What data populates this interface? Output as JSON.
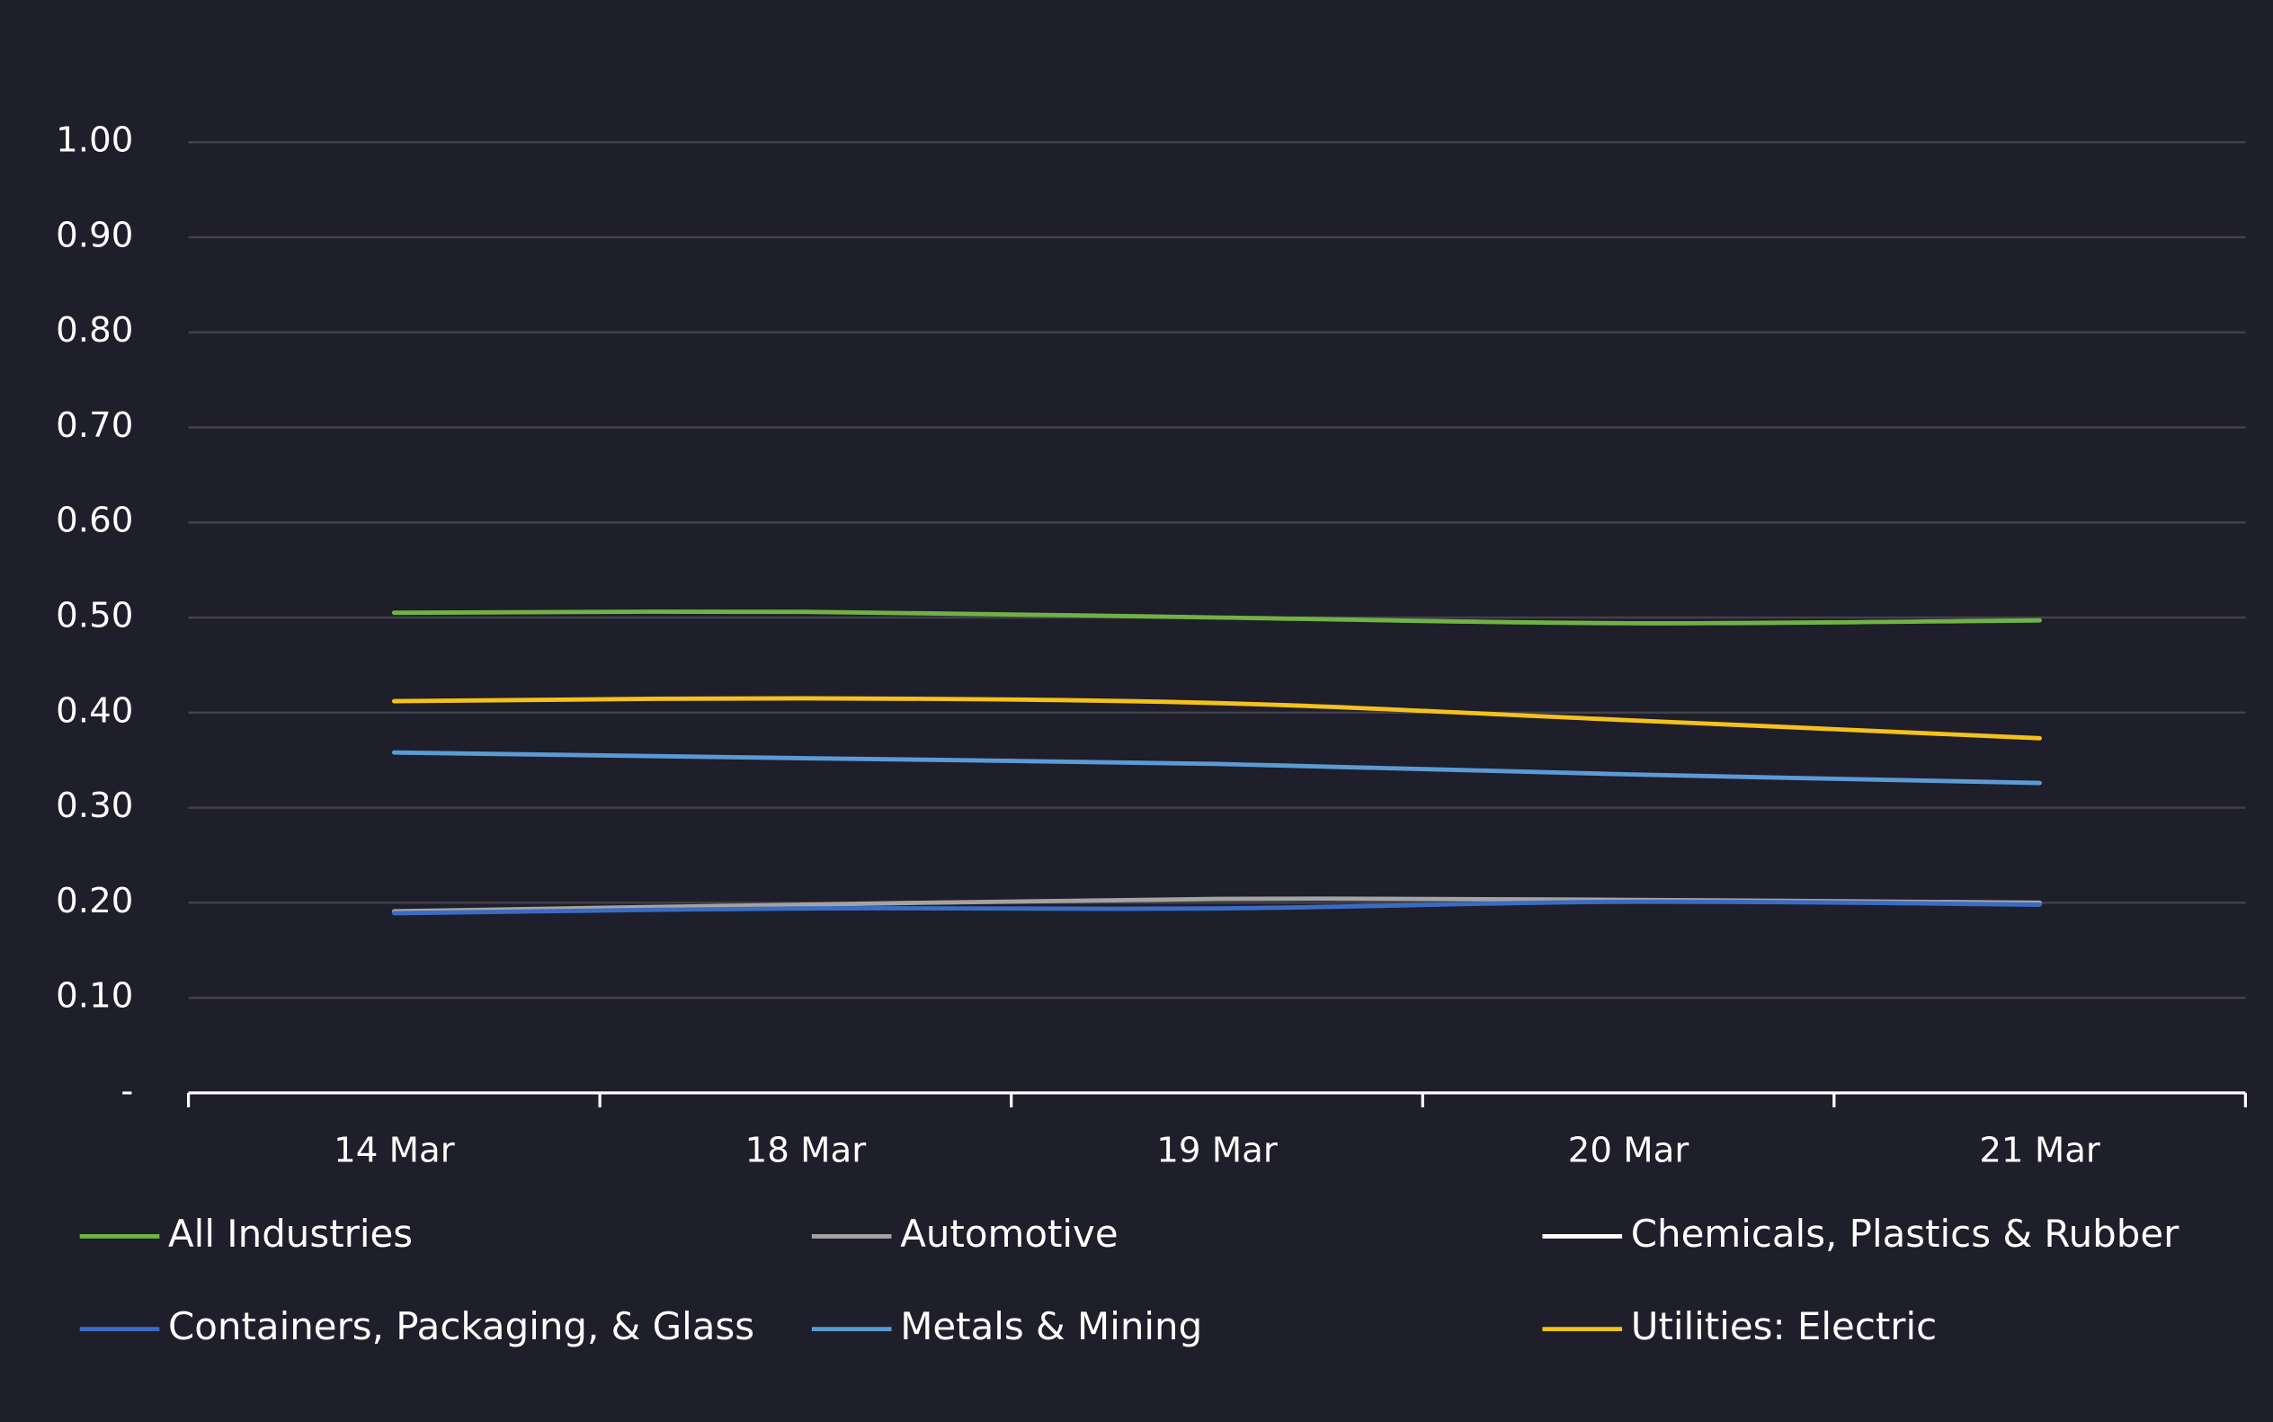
{
  "chart_data": {
    "type": "line",
    "categories": [
      "14 Mar",
      "18 Mar",
      "19 Mar",
      "20 Mar",
      "21 Mar"
    ],
    "series": [
      {
        "name": "All Industries",
        "color": "#6fb344",
        "values": [
          0.505,
          0.506,
          0.5,
          0.494,
          0.497
        ]
      },
      {
        "name": "Automotive",
        "color": "#a3a3a3",
        "values": [
          0.191,
          0.198,
          0.204,
          0.203,
          0.2
        ]
      },
      {
        "name": "Chemicals, Plastics & Rubber",
        "color": "#ffffff",
        "values": [
          null,
          null,
          null,
          null,
          null
        ]
      },
      {
        "name": "Containers, Packaging, & Glass",
        "color": "#3a6cc4",
        "values": [
          0.189,
          0.194,
          0.194,
          0.201,
          0.198
        ]
      },
      {
        "name": "Metals & Mining",
        "color": "#5b9bd5",
        "values": [
          0.358,
          0.352,
          0.346,
          0.335,
          0.326
        ]
      },
      {
        "name": "Utilities: Electric",
        "color": "#f5c21b",
        "values": [
          0.412,
          0.415,
          0.41,
          0.392,
          0.373
        ]
      }
    ],
    "ylim": [
      0,
      1
    ],
    "yticks": [
      {
        "value": 0,
        "label": "-"
      },
      {
        "value": 0.1,
        "label": "0.10"
      },
      {
        "value": 0.2,
        "label": "0.20"
      },
      {
        "value": 0.3,
        "label": "0.30"
      },
      {
        "value": 0.4,
        "label": "0.40"
      },
      {
        "value": 0.5,
        "label": "0.50"
      },
      {
        "value": 0.6,
        "label": "0.60"
      },
      {
        "value": 0.7,
        "label": "0.70"
      },
      {
        "value": 0.8,
        "label": "0.80"
      },
      {
        "value": 0.9,
        "label": "0.90"
      },
      {
        "value": 1,
        "label": "1.00"
      }
    ],
    "grid": true
  }
}
